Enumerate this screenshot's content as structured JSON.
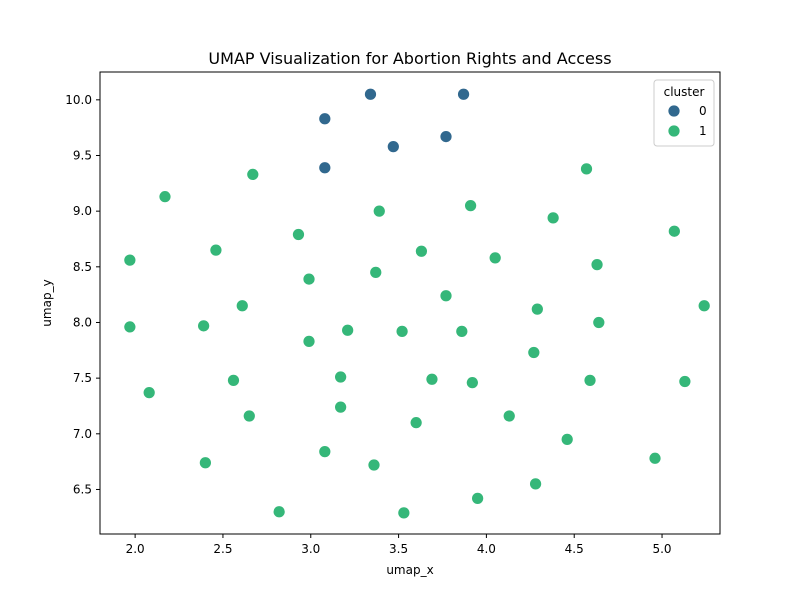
{
  "chart_data": {
    "type": "scatter",
    "title": "UMAP Visualization for Abortion Rights and Access",
    "xlabel": "umap_x",
    "ylabel": "umap_y",
    "xlim": [
      1.8,
      5.33
    ],
    "ylim": [
      6.1,
      10.25
    ],
    "xticks": [
      "2.0",
      "2.5",
      "3.0",
      "3.5",
      "4.0",
      "4.5",
      "5.0"
    ],
    "yticks": [
      "6.5",
      "7.0",
      "7.5",
      "8.0",
      "8.5",
      "9.0",
      "9.5",
      "10.0"
    ],
    "grid": false,
    "legend": {
      "title": "cluster",
      "placement": "top-right"
    },
    "series": [
      {
        "name": "0",
        "color": "#31688e",
        "points": [
          [
            3.34,
            10.05
          ],
          [
            3.87,
            10.05
          ],
          [
            3.08,
            9.83
          ],
          [
            3.77,
            9.67
          ],
          [
            3.47,
            9.58
          ],
          [
            3.08,
            9.39
          ]
        ]
      },
      {
        "name": "1",
        "color": "#35b779",
        "points": [
          [
            4.57,
            9.38
          ],
          [
            2.67,
            9.33
          ],
          [
            2.17,
            9.13
          ],
          [
            3.91,
            9.05
          ],
          [
            3.39,
            9.0
          ],
          [
            4.38,
            8.94
          ],
          [
            5.07,
            8.82
          ],
          [
            2.93,
            8.79
          ],
          [
            2.46,
            8.65
          ],
          [
            3.63,
            8.64
          ],
          [
            4.05,
            8.58
          ],
          [
            1.97,
            8.56
          ],
          [
            4.63,
            8.52
          ],
          [
            3.37,
            8.45
          ],
          [
            2.99,
            8.39
          ],
          [
            3.77,
            8.24
          ],
          [
            2.61,
            8.15
          ],
          [
            5.24,
            8.15
          ],
          [
            4.29,
            8.12
          ],
          [
            4.64,
            8.0
          ],
          [
            1.97,
            7.96
          ],
          [
            2.39,
            7.97
          ],
          [
            3.21,
            7.93
          ],
          [
            3.52,
            7.92
          ],
          [
            3.86,
            7.92
          ],
          [
            2.99,
            7.83
          ],
          [
            4.27,
            7.73
          ],
          [
            3.17,
            7.51
          ],
          [
            2.56,
            7.48
          ],
          [
            3.69,
            7.49
          ],
          [
            4.59,
            7.48
          ],
          [
            3.92,
            7.46
          ],
          [
            5.13,
            7.47
          ],
          [
            2.08,
            7.37
          ],
          [
            3.17,
            7.24
          ],
          [
            2.65,
            7.16
          ],
          [
            4.13,
            7.16
          ],
          [
            3.6,
            7.1
          ],
          [
            4.46,
            6.95
          ],
          [
            3.08,
            6.84
          ],
          [
            3.36,
            6.72
          ],
          [
            2.4,
            6.74
          ],
          [
            4.96,
            6.78
          ],
          [
            4.28,
            6.55
          ],
          [
            3.95,
            6.42
          ],
          [
            2.82,
            6.3
          ],
          [
            3.53,
            6.29
          ]
        ]
      }
    ]
  }
}
